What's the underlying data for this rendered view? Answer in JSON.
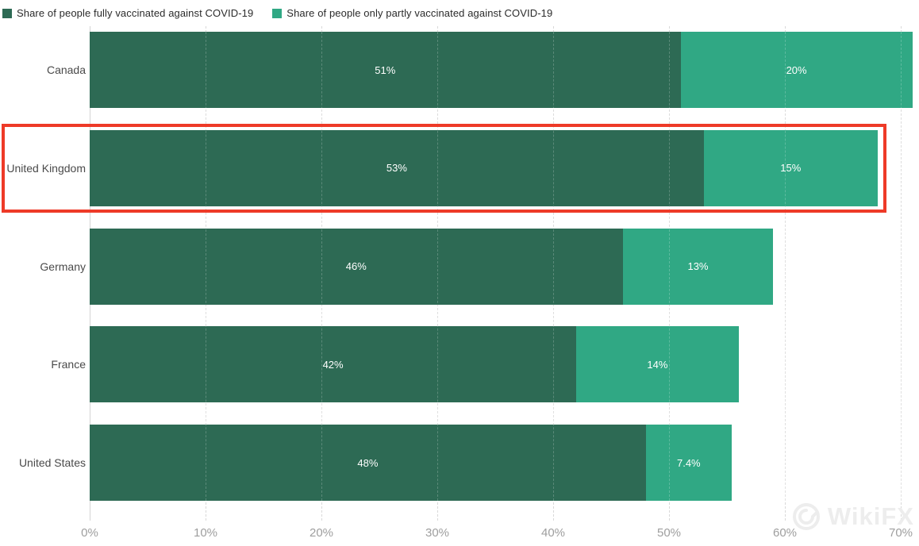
{
  "legend": {
    "items": [
      {
        "label": "Share of people fully vaccinated against COVID-19",
        "color": "#2d6a54"
      },
      {
        "label": "Share of people only partly vaccinated against COVID-19",
        "color": "#30a884"
      }
    ]
  },
  "chart_data": {
    "type": "bar",
    "orientation": "horizontal-stacked",
    "categories": [
      "Canada",
      "United Kingdom",
      "Germany",
      "France",
      "United States"
    ],
    "series": [
      {
        "name": "Share of people fully vaccinated against COVID-19",
        "color": "#2d6a54",
        "values": [
          51,
          53,
          46,
          42,
          48
        ],
        "labels": [
          "51%",
          "53%",
          "46%",
          "42%",
          "48%"
        ]
      },
      {
        "name": "Share of people only partly vaccinated against COVID-19",
        "color": "#30a884",
        "values": [
          20,
          15,
          13,
          14,
          7.4
        ],
        "labels": [
          "20%",
          "15%",
          "13%",
          "14%",
          "7.4%"
        ]
      }
    ],
    "x_tick_values": [
      0,
      10,
      20,
      30,
      40,
      50,
      60,
      70
    ],
    "x_ticks": [
      "0%",
      "10%",
      "20%",
      "30%",
      "40%",
      "50%",
      "60%",
      "70%"
    ],
    "xlim": [
      0,
      71
    ],
    "grid": "dashed-vertical",
    "legend_position": "top",
    "highlighted_category": "United Kingdom",
    "highlight_color": "#ee3a28"
  },
  "watermark": {
    "text": "WikiFX"
  }
}
